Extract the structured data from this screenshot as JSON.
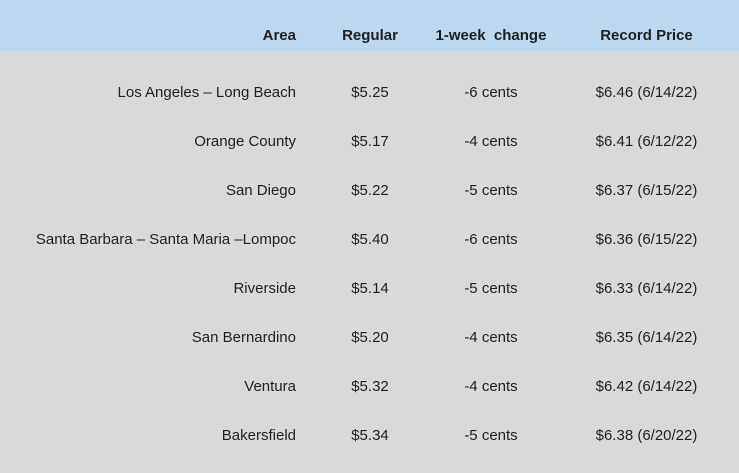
{
  "colors": {
    "header_background": "#bdd7ee",
    "body_background": "#d9d9d9",
    "text": "#1f1f1f"
  },
  "table": {
    "columns": [
      {
        "key": "area",
        "label": "Area"
      },
      {
        "key": "regular",
        "label": "Regular"
      },
      {
        "key": "change",
        "label": "1-week  change"
      },
      {
        "key": "record",
        "label": "Record Price"
      }
    ],
    "rows": [
      {
        "area": "Los Angeles – Long Beach",
        "regular": "$5.25",
        "change": "-6 cents",
        "record": "$6.46 (6/14/22)"
      },
      {
        "area": "Orange County",
        "regular": "$5.17",
        "change": "-4 cents",
        "record": "$6.41 (6/12/22)"
      },
      {
        "area": "San Diego",
        "regular": "$5.22",
        "change": "-5 cents",
        "record": "$6.37 (6/15/22)"
      },
      {
        "area": "Santa Barbara – Santa Maria –Lompoc",
        "regular": "$5.40",
        "change": "-6 cents",
        "record": "$6.36 (6/15/22)"
      },
      {
        "area": "Riverside",
        "regular": "$5.14",
        "change": "-5 cents",
        "record": "$6.33 (6/14/22)"
      },
      {
        "area": "San Bernardino",
        "regular": "$5.20",
        "change": "-4 cents",
        "record": "$6.35 (6/14/22)"
      },
      {
        "area": "Ventura",
        "regular": "$5.32",
        "change": "-4 cents",
        "record": "$6.42 (6/14/22)"
      },
      {
        "area": "Bakersfield",
        "regular": "$5.34",
        "change": "-5 cents",
        "record": "$6.38 (6/20/22)"
      }
    ]
  }
}
